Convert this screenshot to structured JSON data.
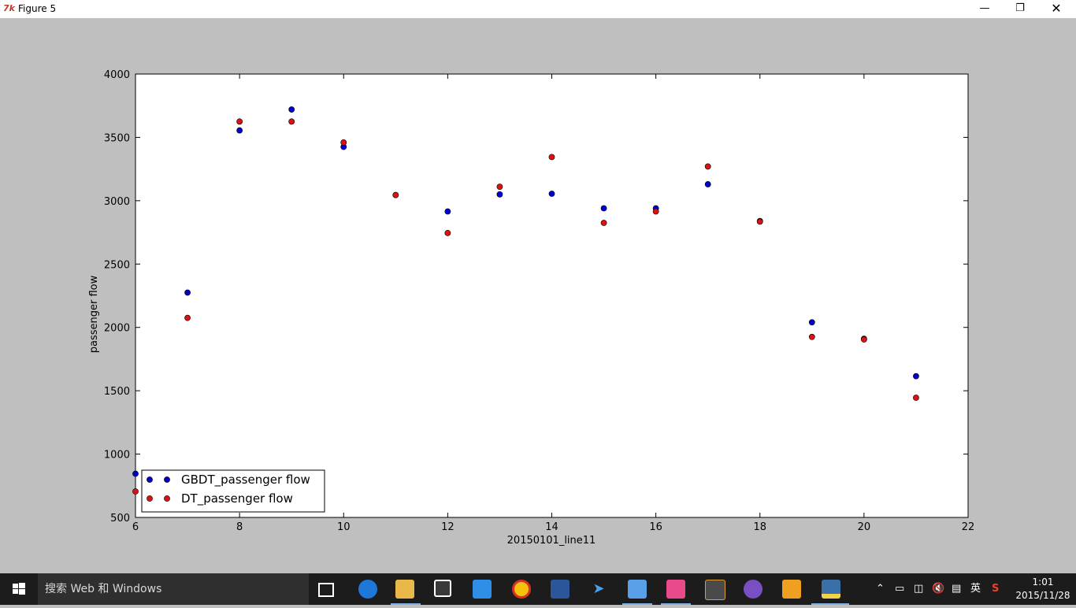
{
  "window": {
    "title": "Figure 5",
    "app_icon": "tk-feather-icon"
  },
  "taskbar": {
    "search_placeholder": "搜索 Web 和 Windows",
    "ime_label": "英",
    "time": "1:01",
    "date": "2015/11/28"
  },
  "chart_data": {
    "type": "scatter",
    "xlabel": "20150101_line11",
    "ylabel": "passenger flow",
    "xlim": [
      6,
      22
    ],
    "ylim": [
      500,
      4000
    ],
    "xticks": [
      "6",
      "8",
      "10",
      "12",
      "14",
      "16",
      "18",
      "20",
      "22"
    ],
    "yticks": [
      "500",
      "1000",
      "1500",
      "2000",
      "2500",
      "3000",
      "3500",
      "4000"
    ],
    "legend_position": "lower-left",
    "grid": false,
    "x": [
      6,
      7,
      8,
      9,
      10,
      11,
      12,
      13,
      14,
      15,
      16,
      17,
      18,
      19,
      20,
      21
    ],
    "series": [
      {
        "name": "GBDT_passenger flow",
        "color": "#0000cc",
        "values": [
          845,
          2275,
          3555,
          3720,
          3425,
          3045,
          2915,
          3050,
          3055,
          2940,
          2940,
          3130,
          2840,
          2040,
          1910,
          1615
        ]
      },
      {
        "name": "DT_passenger flow",
        "color": "#dd1111",
        "values": [
          705,
          2075,
          3625,
          3625,
          3460,
          3045,
          2745,
          3110,
          3345,
          2825,
          2915,
          3270,
          2835,
          1925,
          1905,
          1445
        ]
      }
    ]
  }
}
